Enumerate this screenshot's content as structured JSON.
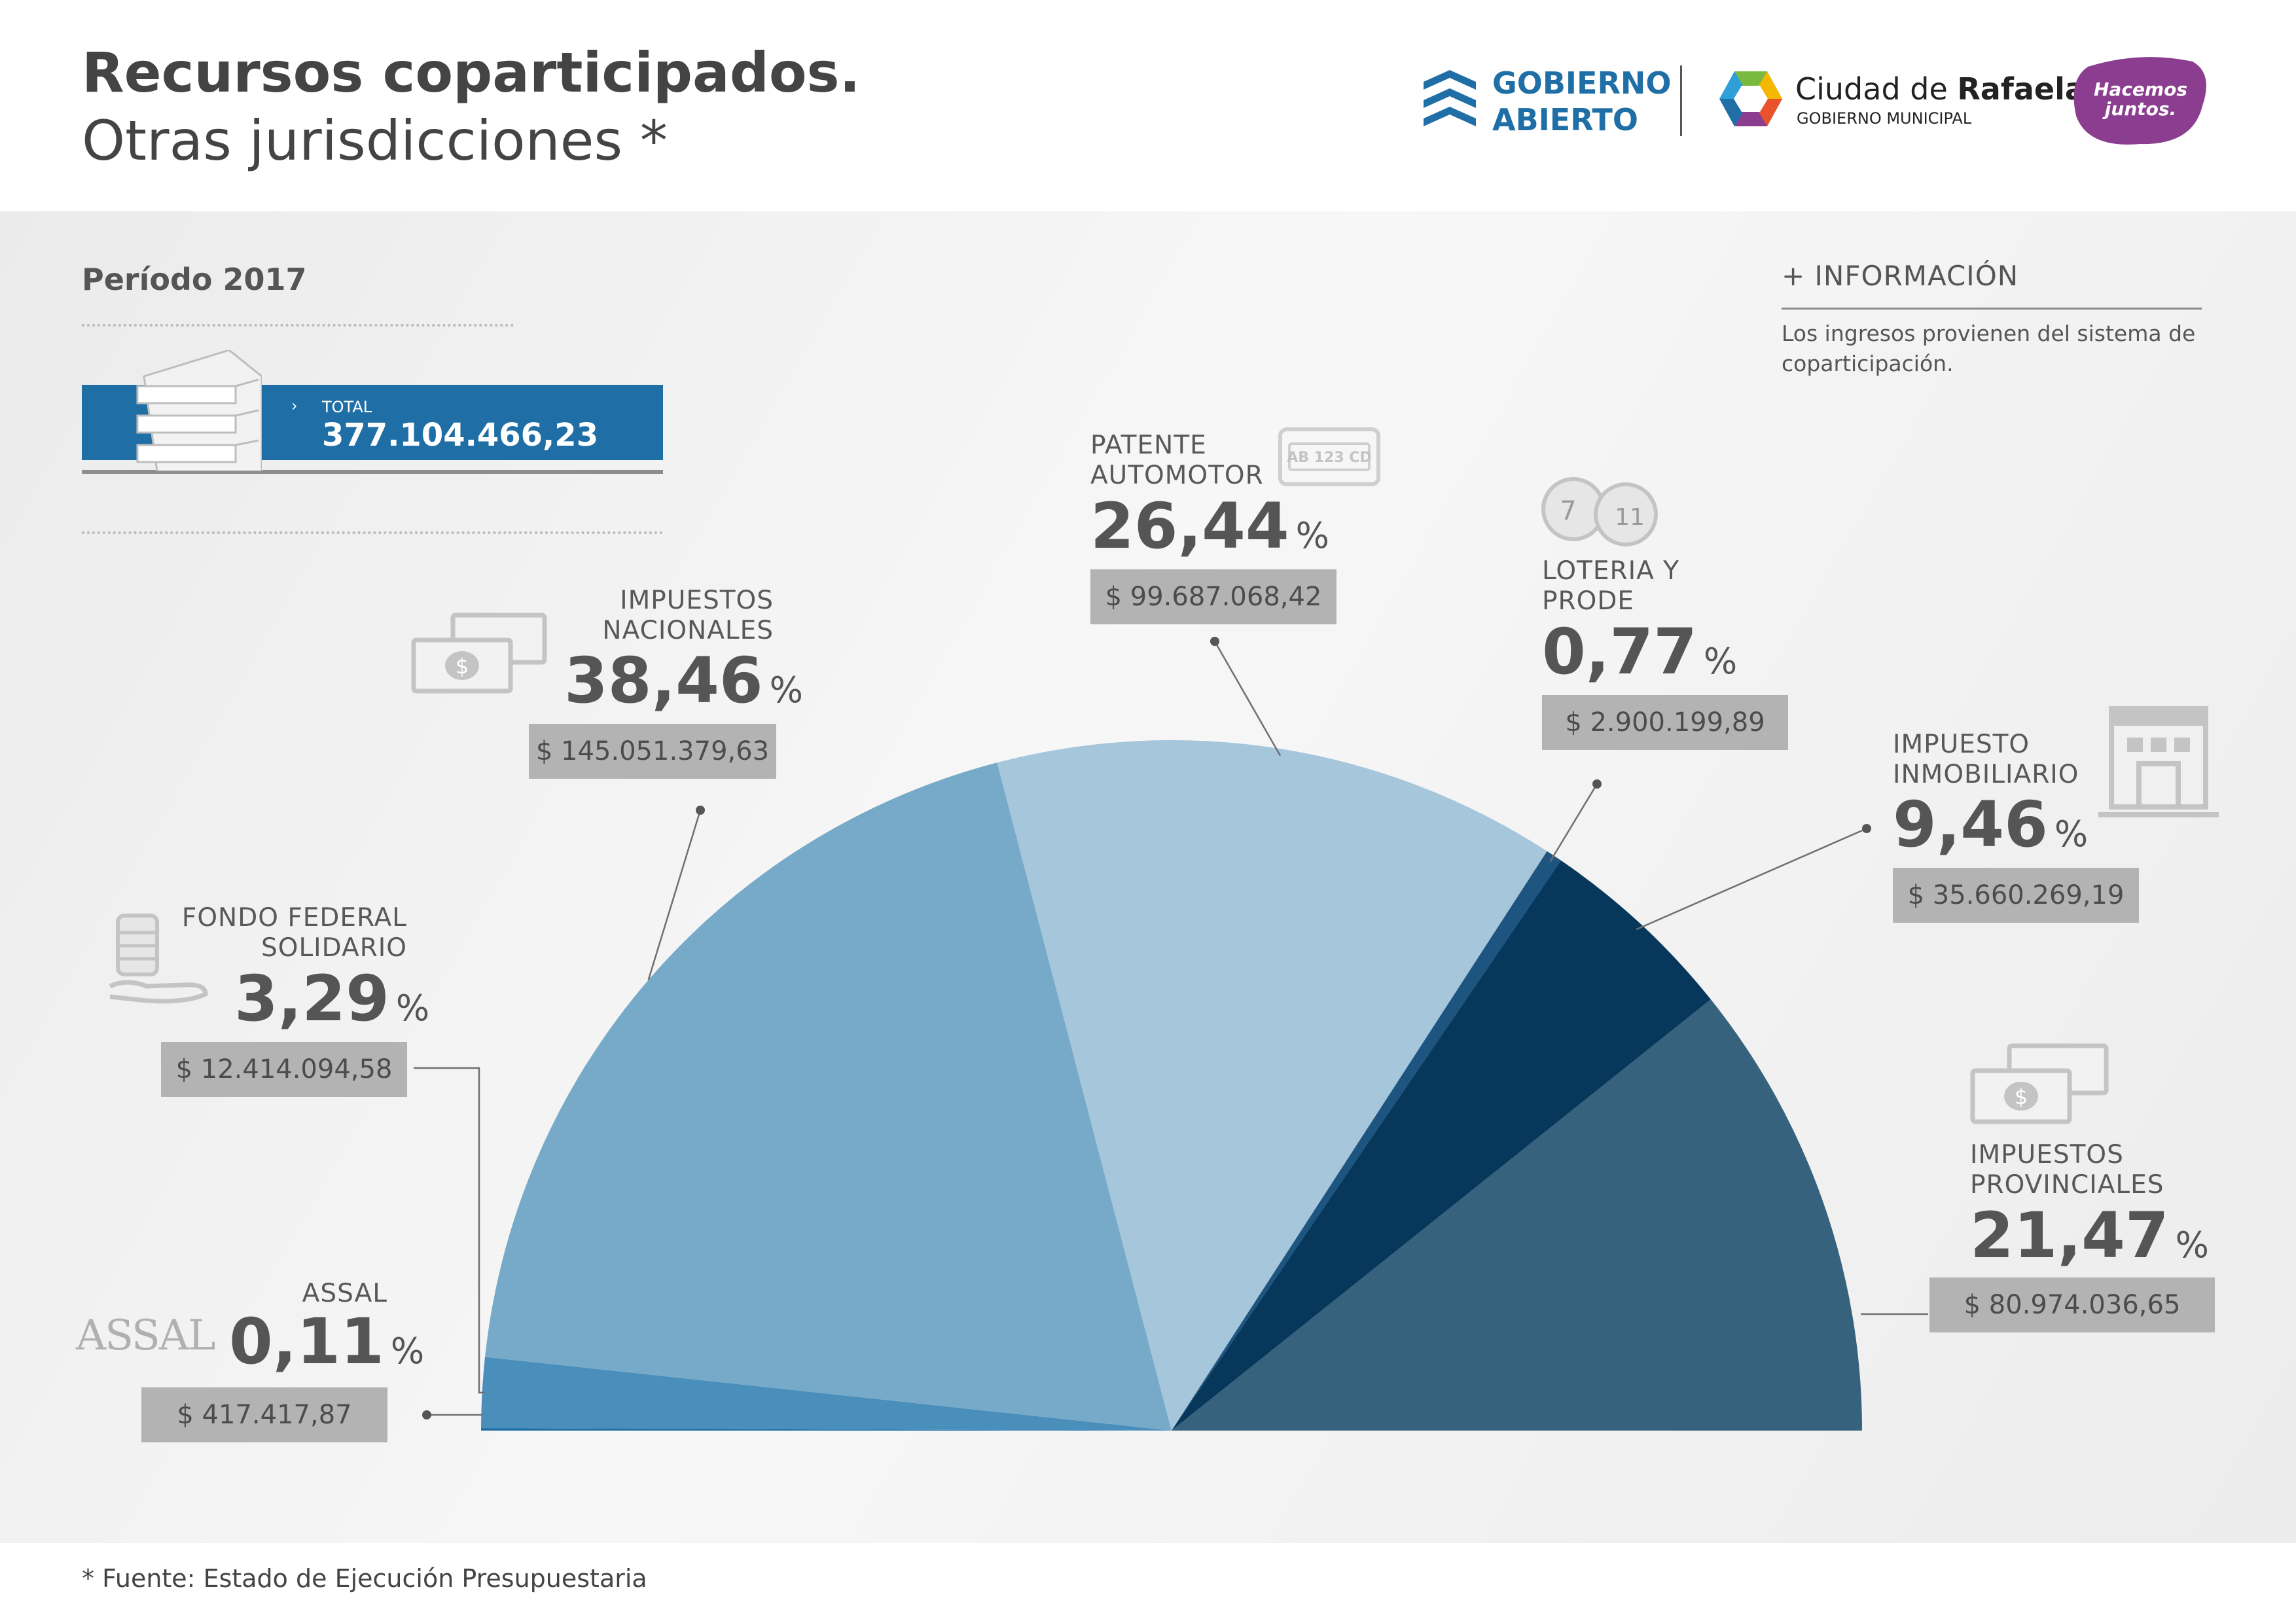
{
  "header": {
    "title_line1": "Recursos coparticipados.",
    "title_line2": "Otras jurisdicciones *"
  },
  "logos": {
    "gobierno_abierto_line1": "GOBIERNO",
    "gobierno_abierto_line2": "ABIERTO",
    "ciudad_prefix": "Ciudad de",
    "ciudad_name": "Rafaela",
    "ciudad_sub": "GOBIERNO MUNICIPAL",
    "hacemos_line1": "Hacemos",
    "hacemos_line2": "juntos."
  },
  "period": "Período 2017",
  "total": {
    "label": "TOTAL",
    "value": "377.104.466,23"
  },
  "info": {
    "title": "+ INFORMACIÓN",
    "text": "Los ingresos provienen del sistema de coparticipación."
  },
  "footnote": "* Fuente: Estado de Ejecución Presupuestaria",
  "icons": {
    "plate_text": "AB 123 CD",
    "ball1": "7",
    "ball2": "11",
    "assal_logo": "ASSAL"
  },
  "chart_data": {
    "type": "pie",
    "shape": "half-donut (semicircle)",
    "percent_unit": "%",
    "slices": [
      {
        "label": "ASSAL",
        "label_lines": [
          "ASSAL"
        ],
        "percent_text": "0,11",
        "percent": 0.11,
        "amount_text": "$ 417.417,87",
        "amount": 417417.87,
        "color": "#1c6ea5"
      },
      {
        "label": "FONDO FEDERAL SOLIDARIO",
        "label_lines": [
          "FONDO FEDERAL",
          "SOLIDARIO"
        ],
        "percent_text": "3,29",
        "percent": 3.29,
        "amount_text": "$ 12.414.094,58",
        "amount": 12414094.58,
        "color": "#4a8fbc"
      },
      {
        "label": "IMPUESTOS NACIONALES",
        "label_lines": [
          "IMPUESTOS",
          "NACIONALES"
        ],
        "percent_text": "38,46",
        "percent": 38.46,
        "amount_text": "$ 145.051.379,63",
        "amount": 145051379.63,
        "color": "#77aac9"
      },
      {
        "label": "PATENTE AUTOMOTOR",
        "label_lines": [
          "PATENTE",
          "AUTOMOTOR"
        ],
        "percent_text": "26,44",
        "percent": 26.44,
        "amount_text": "$ 99.687.068,42",
        "amount": 99687068.42,
        "color": "#a6c6dc"
      },
      {
        "label": "LOTERIA Y PRODE",
        "label_lines": [
          "LOTERIA Y",
          "PRODE"
        ],
        "percent_text": "0,77",
        "percent": 0.77,
        "amount_text": "$ 2.900.199,89",
        "amount": 2900199.89,
        "color": "#1d5580"
      },
      {
        "label": "IMPUESTO INMOBILIARIO",
        "label_lines": [
          "IMPUESTO",
          "INMOBILIARIO"
        ],
        "percent_text": "9,46",
        "percent": 9.46,
        "amount_text": "$ 35.660.269,19",
        "amount": 35660269.19,
        "color": "#07385b"
      },
      {
        "label": "IMPUESTOS PROVINCIALES",
        "label_lines": [
          "IMPUESTOS",
          "PROVINCIALES"
        ],
        "percent_text": "21,47",
        "percent": 21.47,
        "amount_text": "$ 80.974.036,65",
        "amount": 80974036.65,
        "color": "#37627d"
      }
    ]
  }
}
